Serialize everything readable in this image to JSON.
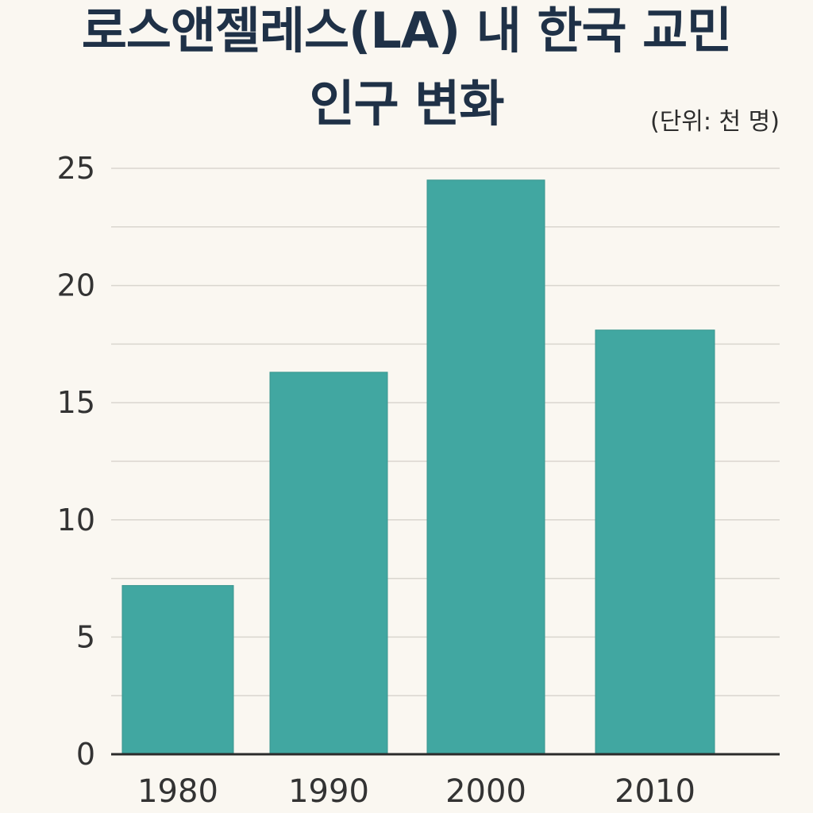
{
  "title": {
    "line1": "로스앤젤레스(LA) 내 한국 교민",
    "line2": "인구 변화"
  },
  "unit_label": "(단위: 천 명)",
  "colors": {
    "bar": "#41a7a1",
    "title": "#1f3147",
    "grid": "#d9d6cf",
    "axis": "#2b2b2b",
    "text": "#333333",
    "background": "#faf7f1"
  },
  "chart_data": {
    "type": "bar",
    "categories": [
      "1980",
      "1990",
      "2000",
      "2010"
    ],
    "values": [
      7.2,
      16.3,
      24.5,
      18.1
    ],
    "yticks": [
      {
        "value": 0,
        "label": "0"
      },
      {
        "value": 5,
        "label": "5"
      },
      {
        "value": 10,
        "label": "10"
      },
      {
        "value": 15,
        "label": "15"
      },
      {
        "value": 20,
        "label": "20"
      },
      {
        "value": 25,
        "label": "25"
      }
    ],
    "ylim": [
      0,
      25
    ],
    "grid": true,
    "xlabel": "",
    "ylabel": ""
  }
}
